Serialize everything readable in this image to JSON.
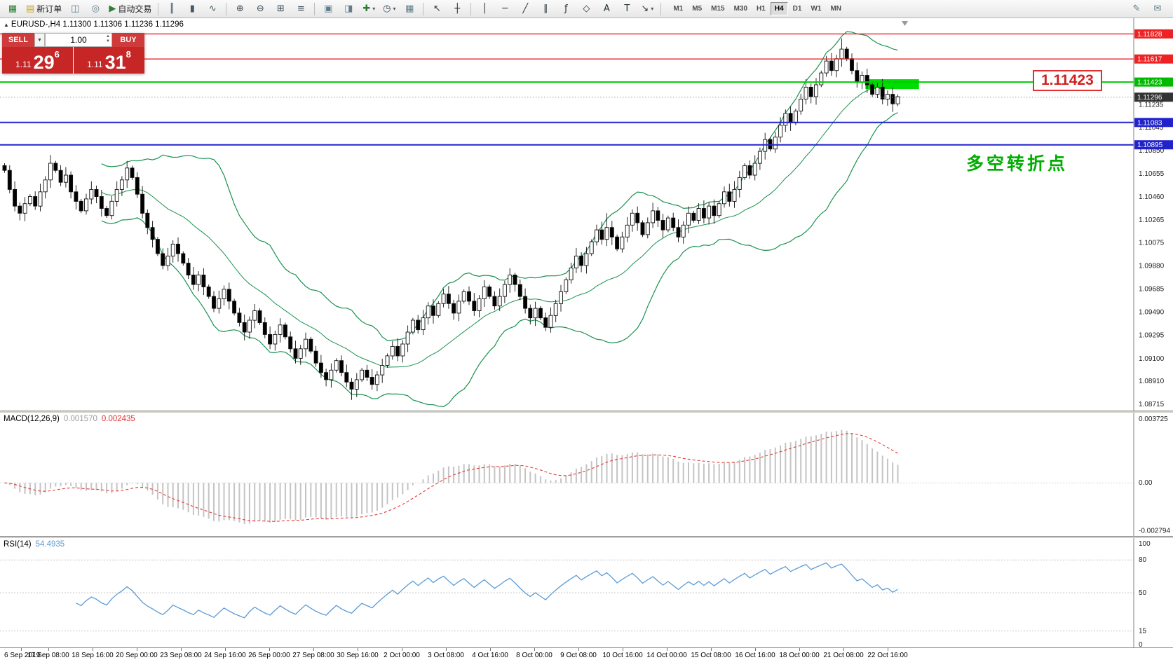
{
  "toolbar": {
    "items": [
      {
        "kind": "icon",
        "name": "new-chart-icon",
        "glyph": "▦",
        "color": "#2e7d32"
      },
      {
        "kind": "button",
        "name": "new-order-button",
        "glyph": "▤",
        "color": "#c9a227",
        "label": "新订单"
      },
      {
        "kind": "icon",
        "name": "profiles-icon",
        "glyph": "◫",
        "color": "#607d8b"
      },
      {
        "kind": "icon",
        "name": "market-watch-icon",
        "glyph": "◎",
        "color": "#607d8b"
      },
      {
        "kind": "button",
        "name": "algo-trading-button",
        "glyph": "▶",
        "color": "#2e7d32",
        "label": "自动交易"
      },
      {
        "kind": "sep"
      },
      {
        "kind": "icon",
        "name": "bar-chart-icon",
        "glyph": "║",
        "color": "#455a64"
      },
      {
        "kind": "icon",
        "name": "candlestick-chart-icon",
        "glyph": "▮",
        "color": "#455a64"
      },
      {
        "kind": "icon",
        "name": "line-chart-icon",
        "glyph": "∿",
        "color": "#455a64"
      },
      {
        "kind": "sep"
      },
      {
        "kind": "icon",
        "name": "zoom-in-icon",
        "glyph": "⊕",
        "color": "#37474f"
      },
      {
        "kind": "icon",
        "name": "zoom-out-icon",
        "glyph": "⊖",
        "color": "#37474f"
      },
      {
        "kind": "icon",
        "name": "tile-windows-icon",
        "glyph": "⊞",
        "color": "#37474f"
      },
      {
        "kind": "icon",
        "name": "indicator-list-icon",
        "glyph": "≡",
        "color": "#37474f"
      },
      {
        "kind": "sep"
      },
      {
        "kind": "icon",
        "name": "arrange-windows-icon",
        "glyph": "▣",
        "color": "#607d8b"
      },
      {
        "kind": "icon",
        "name": "chart-shift-icon",
        "glyph": "◨",
        "color": "#607d8b"
      },
      {
        "kind": "icon",
        "name": "add-indicator-icon",
        "glyph": "✚",
        "color": "#2e7d32",
        "caret": true
      },
      {
        "kind": "icon",
        "name": "period-clock-icon",
        "glyph": "◷",
        "color": "#37474f",
        "caret": true
      },
      {
        "kind": "icon",
        "name": "depth-of-market-icon",
        "glyph": "▦",
        "color": "#607d8b"
      },
      {
        "kind": "sep"
      },
      {
        "kind": "icon",
        "name": "cursor-icon",
        "glyph": "↖",
        "color": "#263238"
      },
      {
        "kind": "icon",
        "name": "crosshair-icon",
        "glyph": "┼",
        "color": "#263238"
      },
      {
        "kind": "sep"
      },
      {
        "kind": "icon",
        "name": "vertical-line-icon",
        "glyph": "│",
        "color": "#263238"
      },
      {
        "kind": "icon",
        "name": "horizontal-line-icon",
        "glyph": "─",
        "color": "#263238"
      },
      {
        "kind": "icon",
        "name": "trendline-icon",
        "glyph": "╱",
        "color": "#263238"
      },
      {
        "kind": "icon",
        "name": "channel-icon",
        "glyph": "∥",
        "color": "#263238"
      },
      {
        "kind": "icon",
        "name": "fibonacci-icon",
        "glyph": "ƒ",
        "color": "#263238"
      },
      {
        "kind": "icon",
        "name": "shapes-icon",
        "glyph": "◇",
        "color": "#263238"
      },
      {
        "kind": "icon",
        "name": "text-tool-icon",
        "glyph": "A",
        "color": "#263238"
      },
      {
        "kind": "icon",
        "name": "label-tool-icon",
        "glyph": "T",
        "color": "#263238"
      },
      {
        "kind": "icon",
        "name": "arrows-tool-icon",
        "glyph": "↘",
        "color": "#263238",
        "caret": true
      },
      {
        "kind": "sep"
      }
    ],
    "timeframes": [
      "M1",
      "M5",
      "M15",
      "M30",
      "H1",
      "H4",
      "D1",
      "W1",
      "MN"
    ],
    "active_timeframe": "H4",
    "right_items": [
      {
        "name": "edit-icon",
        "glyph": "✎",
        "color": "#607d8b"
      },
      {
        "name": "mail-icon",
        "glyph": "✉",
        "color": "#607d8b"
      }
    ]
  },
  "chart": {
    "collapse_glyph": "▲",
    "symbol_timeframe": "EURUSD-,H4",
    "ohlc_text": "1.11300 1.11306 1.11236 1.11296"
  },
  "trade_panel": {
    "sell_label": "SELL",
    "buy_label": "BUY",
    "dropdown_glyph": "▼",
    "volume": "1.00",
    "spin_up": "▲",
    "spin_down": "▼",
    "sell_price_prefix": "1.11",
    "sell_price_big": "29",
    "sell_price_sup": "6",
    "buy_price_prefix": "1.11",
    "buy_price_big": "31",
    "buy_price_sup": "8"
  },
  "annotations": {
    "price_label": "1.11423",
    "note_text": "多空转折点"
  },
  "levels": {
    "hlines": [
      {
        "price": 1.11828,
        "color": "#ee2222",
        "width": 1.4,
        "style": "solid"
      },
      {
        "price": 1.11617,
        "color": "#ee2222",
        "width": 1.4,
        "style": "solid"
      },
      {
        "price": 1.11423,
        "color": "#00cc00",
        "width": 2,
        "style": "solid"
      },
      {
        "price": 1.11296,
        "color": "#999999",
        "width": 1,
        "style": "dot"
      },
      {
        "price": 1.11083,
        "color": "#2222cc",
        "width": 2,
        "style": "solid"
      },
      {
        "price": 1.10895,
        "color": "#2222cc",
        "width": 2,
        "style": "solid"
      }
    ],
    "tags": [
      {
        "text": "1.11828",
        "price": 1.11828,
        "color": "#ee2222"
      },
      {
        "text": "1.11617",
        "price": 1.11617,
        "color": "#ee2222"
      },
      {
        "text": "1.11423",
        "price": 1.11423,
        "color": "#00bb00"
      },
      {
        "text": "1.11296",
        "price": 1.11296,
        "color": "#333333"
      },
      {
        "text": "1.11083",
        "price": 1.11083,
        "color": "#2222cc"
      },
      {
        "text": "1.10895",
        "price": 1.10895,
        "color": "#2222cc"
      }
    ]
  },
  "price_axis": {
    "ticks": [
      "1.11235",
      "1.11045",
      "1.10850",
      "1.10655",
      "1.10460",
      "1.10265",
      "1.10075",
      "1.09880",
      "1.09685",
      "1.09490",
      "1.09295",
      "1.09100",
      "1.08910",
      "1.08715"
    ]
  },
  "time_axis": {
    "labels": [
      "6 Sep 2019",
      "17 Sep 08:00",
      "18 Sep 16:00",
      "20 Sep 00:00",
      "23 Sep 08:00",
      "24 Sep 16:00",
      "26 Sep 00:00",
      "27 Sep 08:00",
      "30 Sep 16:00",
      "2 Oct 00:00",
      "3 Oct 08:00",
      "4 Oct 16:00",
      "8 Oct 00:00",
      "9 Oct 08:00",
      "10 Oct 16:00",
      "14 Oct 00:00",
      "15 Oct 08:00",
      "16 Oct 16:00",
      "18 Oct 00:00",
      "21 Oct 08:00",
      "22 Oct 16:00"
    ]
  },
  "macd": {
    "name": "MACD(12,26,9)",
    "value1": "0.001570",
    "value2": "0.002435",
    "axis": [
      "0.003725",
      "0.00",
      "-0.002794"
    ],
    "range": [
      -0.0031,
      0.0041
    ]
  },
  "rsi": {
    "name": "RSI(14)",
    "value": "54.4935",
    "axis": [
      "100",
      "80",
      "50",
      "15",
      "0"
    ],
    "level_lines": [
      80,
      50,
      15
    ]
  },
  "colors": {
    "candle_up": "#ffffff",
    "candle_down": "#000000",
    "candle_stroke": "#111111",
    "bands": "#19924f",
    "highlight": "#00dd00",
    "macd_hist": "#c4c4c4",
    "macd_signal": "#e53935",
    "rsi_line": "#5b9bd5",
    "grid_dotted": "#d8d8d8"
  },
  "chart_data": {
    "type": "candlestick",
    "symbol": "EURUSD",
    "timeframe": "H4",
    "price_range": [
      1.0866,
      1.1196
    ],
    "first_open": 1.1072,
    "closes": [
      1.1068,
      1.1052,
      1.1038,
      1.1032,
      1.104,
      1.1046,
      1.1038,
      1.105,
      1.106,
      1.1074,
      1.1068,
      1.1058,
      1.1064,
      1.105,
      1.1042,
      1.1034,
      1.1044,
      1.1052,
      1.1046,
      1.1036,
      1.103,
      1.1042,
      1.1052,
      1.106,
      1.107,
      1.1062,
      1.1048,
      1.1032,
      1.102,
      1.101,
      1.0998,
      1.0988,
      1.0996,
      1.1006,
      1.0998,
      1.099,
      1.098,
      1.0972,
      1.098,
      1.097,
      1.0962,
      1.0952,
      1.096,
      1.0968,
      1.0958,
      1.0948,
      1.094,
      1.0932,
      1.0942,
      1.095,
      1.094,
      1.093,
      1.0922,
      1.093,
      1.0938,
      1.0928,
      1.0918,
      1.091,
      1.0918,
      1.0926,
      1.0916,
      1.0906,
      1.0898,
      1.0892,
      1.09,
      1.0908,
      1.0898,
      1.089,
      1.0884,
      1.0892,
      1.09,
      1.0894,
      1.0888,
      1.0896,
      1.0904,
      1.0912,
      1.092,
      1.0912,
      1.0922,
      1.0932,
      1.0942,
      1.0934,
      1.0944,
      1.0954,
      1.0946,
      1.0956,
      1.0964,
      1.0956,
      1.0948,
      1.0958,
      1.0966,
      1.0958,
      1.095,
      1.096,
      1.097,
      1.0962,
      1.0954,
      1.0962,
      1.0972,
      1.098,
      1.0972,
      1.0962,
      1.0952,
      1.0944,
      1.0952,
      1.0944,
      1.0936,
      1.0946,
      1.0956,
      1.0966,
      1.0976,
      1.0986,
      1.0996,
      1.0988,
      1.0998,
      1.1008,
      1.1018,
      1.101,
      1.102,
      1.1012,
      1.1002,
      1.1012,
      1.1022,
      1.1032,
      1.1024,
      1.1014,
      1.1024,
      1.1034,
      1.1026,
      1.1018,
      1.1028,
      1.102,
      1.1012,
      1.1022,
      1.1032,
      1.1026,
      1.1036,
      1.1028,
      1.1038,
      1.103,
      1.104,
      1.105,
      1.1042,
      1.1052,
      1.1062,
      1.1072,
      1.1064,
      1.1074,
      1.1084,
      1.1094,
      1.1086,
      1.1096,
      1.1106,
      1.1116,
      1.1108,
      1.1118,
      1.1128,
      1.1138,
      1.113,
      1.114,
      1.115,
      1.116,
      1.1152,
      1.1162,
      1.117,
      1.1162,
      1.1152,
      1.1142,
      1.1148,
      1.114,
      1.1132,
      1.1138,
      1.1128,
      1.1132,
      1.1124,
      1.113
    ],
    "wicks": {
      "base": 0.0002,
      "step": 0.00012,
      "long_up": [
        [
          9,
          0.0007
        ],
        [
          24,
          0.0006
        ],
        [
          118,
          0.0012
        ],
        [
          143,
          0.0007
        ],
        [
          164,
          0.0009
        ]
      ],
      "long_down": [
        [
          3,
          0.0006
        ],
        [
          47,
          0.0007
        ],
        [
          68,
          0.0009
        ],
        [
          100,
          0.0006
        ]
      ]
    },
    "green_box": {
      "from_bar": 169,
      "to_bar": 179.5,
      "price": 1.11423
    },
    "indicators": {
      "bollinger": {
        "period": 20,
        "deviation": 2
      },
      "macd": [
        12,
        26,
        9
      ],
      "rsi": [
        14
      ]
    }
  }
}
